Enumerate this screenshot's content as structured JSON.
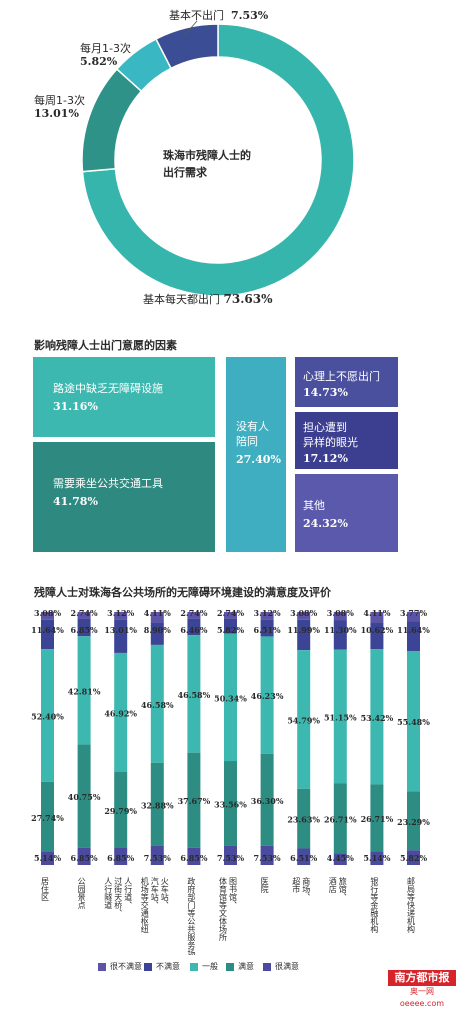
{
  "colors": {
    "very_dissatisfied": "#5d54a8",
    "dissatisfied": "#3c4496",
    "neutral": "#3db8b0",
    "satisfied": "#2d8d82",
    "very_satisfied": "#4a4b9e",
    "donut_daily": "#36b5ad",
    "donut_weekly": "#2f9288",
    "donut_monthly": "#39b8c3",
    "donut_rarely": "#3b4d94"
  },
  "donut": {
    "center_line1": "珠海市残障人士的",
    "center_line2": "出行需求",
    "segments": [
      {
        "label": "基本每天都出门",
        "pct": "73.63%"
      },
      {
        "label": "每周1-3次",
        "pct": "13.01%"
      },
      {
        "label": "每月1-3次",
        "pct": "5.82%"
      },
      {
        "label": "基本不出门",
        "pct": "7.53%"
      }
    ]
  },
  "factors": {
    "title": "影响残障人士出门意愿的因素",
    "tiles": [
      {
        "label": "路途中缺乏无障碍设施",
        "pct": "31.16%"
      },
      {
        "label": "需要乘坐公共交通工具",
        "pct": "41.78%"
      },
      {
        "label_line1": "没有人",
        "label_line2": "陪同",
        "pct": "27.40%"
      },
      {
        "label": "心理上不愿出门",
        "pct": "14.73%"
      },
      {
        "label_line1": "担心遭到",
        "label_line2": "异样的眼光",
        "pct": "17.12%"
      },
      {
        "label": "其他",
        "pct": "24.32%"
      }
    ]
  },
  "chart_data": {
    "type": "bar",
    "title": "残障人士对珠海各公共场所的无障碍环境建设的满意度及评价",
    "stacked": true,
    "categories": [
      "居住区",
      "公园景点",
      "人行道、过街天桥、人行隧道",
      "火车站、汽车站、机场等交通枢纽",
      "政府部门等公共服务场所",
      "图书馆、体育馆等文体场所",
      "医院",
      "商场、超市",
      "旅馆、酒店",
      "银行等金融机构",
      "邮局等快递机构"
    ],
    "series": [
      {
        "name": "很不满意",
        "values": [
          3.08,
          2.74,
          3.12,
          4.11,
          2.74,
          2.74,
          3.12,
          3.08,
          3.08,
          4.11,
          3.77
        ]
      },
      {
        "name": "不满意",
        "values": [
          11.64,
          6.85,
          13.01,
          8.9,
          6.46,
          5.82,
          6.51,
          11.99,
          11.3,
          10.62,
          11.64
        ]
      },
      {
        "name": "一般",
        "values": [
          52.4,
          42.81,
          46.92,
          46.58,
          46.58,
          50.34,
          46.23,
          54.79,
          51.15,
          53.42,
          55.48
        ]
      },
      {
        "name": "满意",
        "values": [
          27.74,
          40.75,
          29.79,
          32.88,
          37.67,
          33.56,
          36.3,
          23.63,
          26.71,
          26.71,
          23.29
        ]
      },
      {
        "name": "很满意",
        "values": [
          5.14,
          6.85,
          6.85,
          7.53,
          6.85,
          7.53,
          7.53,
          6.51,
          4.45,
          5.14,
          5.82
        ]
      }
    ],
    "value_labels": [
      [
        "3.08%",
        "2.74%",
        "3.12%",
        "4.11%",
        "2.74%",
        "2.74%",
        "3.12%",
        "3.08%",
        "3.08%",
        "4.11%",
        "3.77%"
      ],
      [
        "11.64%",
        "6.85%",
        "13.01%",
        "8.90%",
        "6.46%",
        "5.82%",
        "6.51%",
        "11.99%",
        "11.30%",
        "10.62%",
        "11.64%"
      ],
      [
        "52.40%",
        "42.81%",
        "46.92%",
        "46.58%",
        "46.58%",
        "50.34%",
        "46.23%",
        "54.79%",
        "51.15%",
        "53.42%",
        "55.48%"
      ],
      [
        "27.74%",
        "40.75%",
        "29.79%",
        "32.88%",
        "37.67%",
        "33.56%",
        "36.30%",
        "23.63%",
        "26.71%",
        "26.71%",
        "23.29%"
      ],
      [
        "5.14%",
        "6.85%",
        "6.85%",
        "7.53%",
        "6.85%",
        "7.53%",
        "7.53%",
        "6.51%",
        "4.45%",
        "5.14%",
        "5.82%"
      ]
    ],
    "ylim": [
      0,
      100
    ],
    "grid": false,
    "legend_position": "bottom"
  },
  "watermark": {
    "top": "南方都市报",
    "bottom": "奥一网oeeee.com"
  }
}
